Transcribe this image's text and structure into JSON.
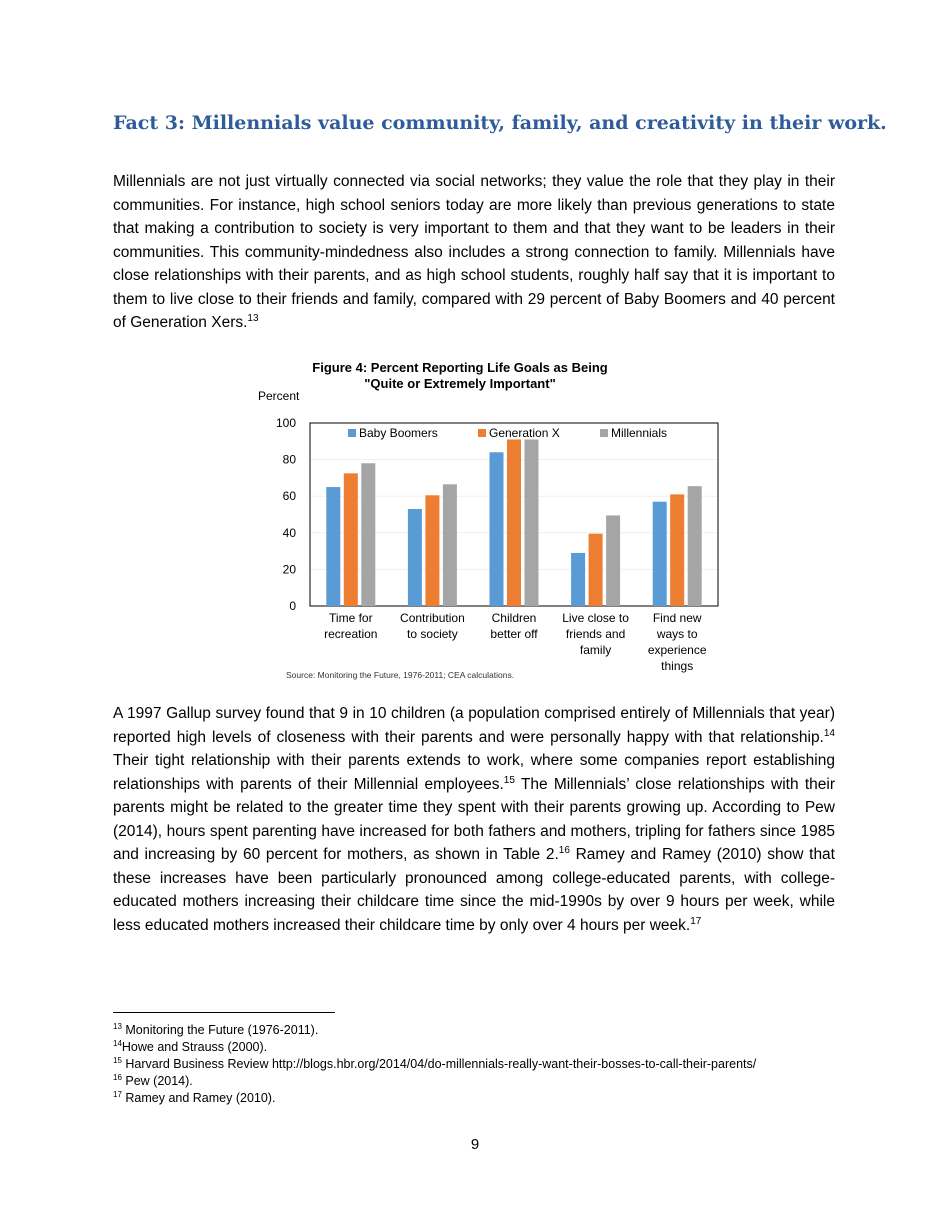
{
  "heading": "Fact 3: Millennials value community, family, and creativity in their work.",
  "para1": {
    "text": "Millennials are not just virtually connected via social networks; they value the role that they play in their communities. For instance, high school seniors today are more likely than previous generations to state that making a contribution to society is very important to them and that they want to be leaders in their communities. This community-mindedness also includes a strong connection to family. Millennials have close relationships with their parents, and as high school students, roughly half say that it is important to them to live close to their friends and family, compared with 29 percent of Baby Boomers and 40 percent of Generation Xers.",
    "ref": "13"
  },
  "para2": {
    "t1": "A 1997 Gallup survey found that 9 in 10 children (a population comprised entirely of Millennials that year) reported high levels of closeness with their parents and were personally happy with that relationship.",
    "r1": "14",
    "t2": " Their tight relationship with their parents extends to work, where some companies report establishing relationships with parents of their Millennial employees.",
    "r2": "15",
    "t3": " The Millennials’ close relationships with their parents might be related to the greater time they spent with their parents growing up. According to Pew (2014), hours spent parenting have increased for both fathers and mothers, tripling for fathers since 1985 and increasing by 60 percent for mothers, as shown in Table 2.",
    "r3": "16",
    "t4": " Ramey and Ramey (2010) show that these increases have been particularly pronounced among college-educated parents, with college-educated mothers increasing their childcare time since the mid-1990s by over 9 hours per week, while less educated mothers increased their childcare time by only over 4 hours per week.",
    "r4": "17"
  },
  "chart_data": {
    "type": "bar",
    "title": [
      "Figure 4: Percent Reporting Life Goals as Being",
      "\"Quite or Extremely Important\""
    ],
    "ylabel": "Percent",
    "ylim": [
      0,
      100
    ],
    "yticks": [
      "0",
      "20",
      "40",
      "60",
      "80",
      "100"
    ],
    "categories": [
      [
        "Time for",
        "recreation"
      ],
      [
        "Contribution",
        "to society"
      ],
      [
        "Children",
        "better off"
      ],
      [
        "Live close to",
        "friends and",
        "family"
      ],
      [
        "Find new",
        "ways to",
        "experience",
        "things"
      ]
    ],
    "series": [
      {
        "name": "Baby Boomers",
        "color": "#5b9bd5",
        "values": [
          65,
          53,
          84,
          29,
          57
        ]
      },
      {
        "name": "Generation X",
        "color": "#ed7d31",
        "values": [
          72.5,
          60.5,
          91,
          39.5,
          61
        ]
      },
      {
        "name": "Millennials",
        "color": "#a5a5a5",
        "values": [
          78,
          66.5,
          91,
          49.5,
          65.5
        ]
      }
    ],
    "legend": "top",
    "source": "Source: Monitoring the Future, 1976-2011; CEA calculations."
  },
  "footnotes": [
    {
      "n": "13",
      "t": " Monitoring the Future (1976-2011)."
    },
    {
      "n": "14",
      "t": "Howe and Strauss (2000)."
    },
    {
      "n": "15",
      "t": " Harvard Business Review http://blogs.hbr.org/2014/04/do-millennials-really-want-their-bosses-to-call-their-parents/"
    },
    {
      "n": "16",
      "t": " Pew (2014)."
    },
    {
      "n": "17",
      "t": " Ramey and Ramey (2010)."
    }
  ],
  "page_number": "9"
}
